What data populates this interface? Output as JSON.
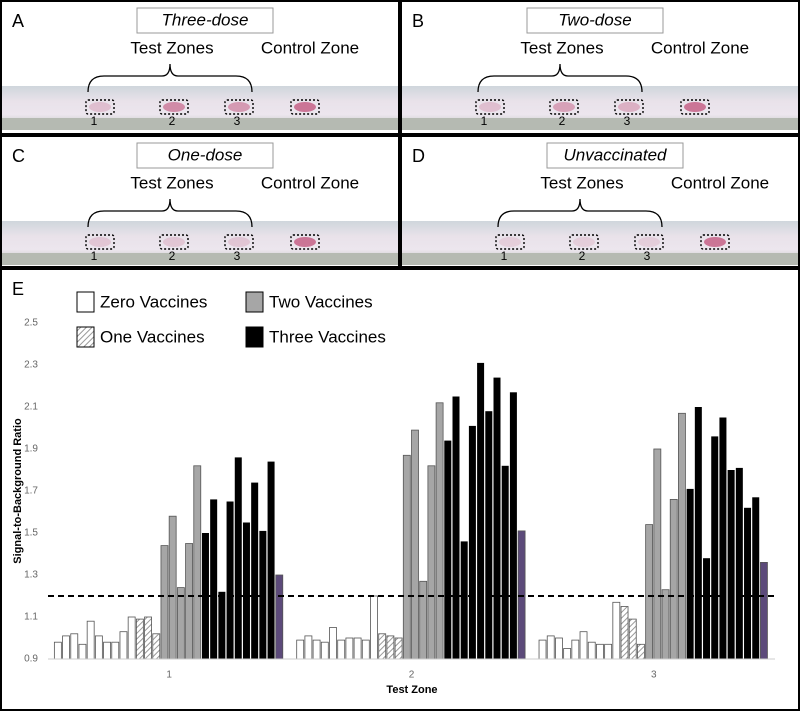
{
  "panels": [
    {
      "letter": "A",
      "dose": "Three-dose",
      "test_label": "Test Zones",
      "control_label": "Control Zone",
      "zones": [
        "1",
        "2",
        "3"
      ]
    },
    {
      "letter": "B",
      "dose": "Two-dose",
      "test_label": "Test Zones",
      "control_label": "Control Zone",
      "zones": [
        "1",
        "2",
        "3"
      ]
    },
    {
      "letter": "C",
      "dose": "One-dose",
      "test_label": "Test Zones",
      "control_label": "Control Zone",
      "zones": [
        "1",
        "2",
        "3"
      ]
    },
    {
      "letter": "D",
      "dose": "Unvaccinated",
      "test_label": "Test Zones",
      "control_label": "Control Zone",
      "zones": [
        "1",
        "2",
        "3"
      ]
    }
  ],
  "chart_data": {
    "type": "grouped-bar",
    "panel_letter": "E",
    "x_label": "Test Zone",
    "y_label": "Signal-to-Background Ratio",
    "categories": [
      "1",
      "2",
      "3"
    ],
    "ylim": [
      0.9,
      2.5
    ],
    "yticks": [
      0.9,
      1.1,
      1.3,
      1.5,
      1.7,
      1.9,
      2.1,
      2.3,
      2.5
    ],
    "threshold": 1.2,
    "series": [
      {
        "name": "Zero Vaccines",
        "color": "#ffffff",
        "values": [
          [
            0.98,
            1.01,
            1.02,
            0.97,
            1.08,
            1.01,
            0.98,
            0.98,
            1.03,
            1.1
          ],
          [
            0.99,
            1.01,
            0.99,
            0.98,
            1.05,
            0.99,
            1.0,
            1.0,
            0.99,
            1.2
          ],
          [
            0.99,
            1.01,
            1.0,
            0.95,
            0.99,
            1.03,
            0.98,
            0.97,
            0.97,
            1.17
          ]
        ]
      },
      {
        "name": "One Vaccines",
        "color": "#d0d0d0",
        "hatch": true,
        "values": [
          [
            1.09,
            1.1,
            1.02
          ],
          [
            1.02,
            1.01,
            1.0
          ],
          [
            1.15,
            1.09,
            0.97
          ]
        ]
      },
      {
        "name": "Two Vaccines",
        "color": "#a6a6a6",
        "values": [
          [
            1.44,
            1.58,
            1.24,
            1.45,
            1.82
          ],
          [
            1.87,
            1.99,
            1.27,
            1.82,
            2.12
          ],
          [
            1.54,
            1.9,
            1.23,
            1.66,
            2.07
          ]
        ]
      },
      {
        "name": "Three Vaccines",
        "color": "#000000",
        "values": [
          [
            1.5,
            1.66,
            1.22,
            1.65,
            1.86,
            1.55,
            1.74,
            1.51,
            1.84
          ],
          [
            1.94,
            2.15,
            1.46,
            2.01,
            2.31,
            2.08,
            2.24,
            1.82,
            2.17
          ],
          [
            1.71,
            2.1,
            1.38,
            1.96,
            2.05,
            1.8,
            1.81,
            1.62,
            1.67
          ]
        ]
      },
      {
        "color": "#5c4a7a",
        "values": [
          [
            1.3
          ],
          [
            1.51
          ],
          [
            1.36
          ]
        ]
      }
    ]
  }
}
